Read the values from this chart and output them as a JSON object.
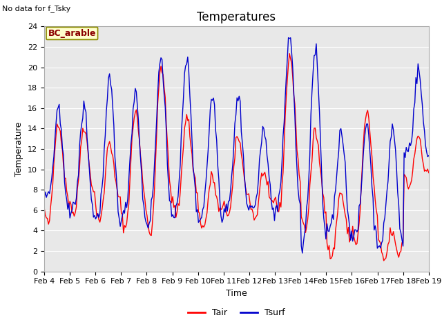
{
  "title": "Temperatures",
  "xlabel": "Time",
  "ylabel": "Temperature",
  "top_left_text": "No data for f_Tsky",
  "box_label": "BC_arable",
  "ylim": [
    0,
    24
  ],
  "yticks": [
    0,
    2,
    4,
    6,
    8,
    10,
    12,
    14,
    16,
    18,
    20,
    22,
    24
  ],
  "xtick_labels": [
    "Feb 4",
    "Feb 5",
    "Feb 6",
    "Feb 7",
    "Feb 8",
    "Feb 9",
    "Feb 10",
    "Feb 11",
    "Feb 12",
    "Feb 13",
    "Feb 14",
    "Feb 15",
    "Feb 16",
    "Feb 17",
    "Feb 18",
    "Feb 19"
  ],
  "line_color_tair": "#ff0000",
  "line_color_tsurf": "#0000cc",
  "line_width": 1.0,
  "legend_labels": [
    "Tair",
    "Tsurf"
  ],
  "fig_bg": "#ffffff",
  "plot_bg": "#e8e8e8",
  "title_fontsize": 12,
  "label_fontsize": 9,
  "tick_fontsize": 8
}
